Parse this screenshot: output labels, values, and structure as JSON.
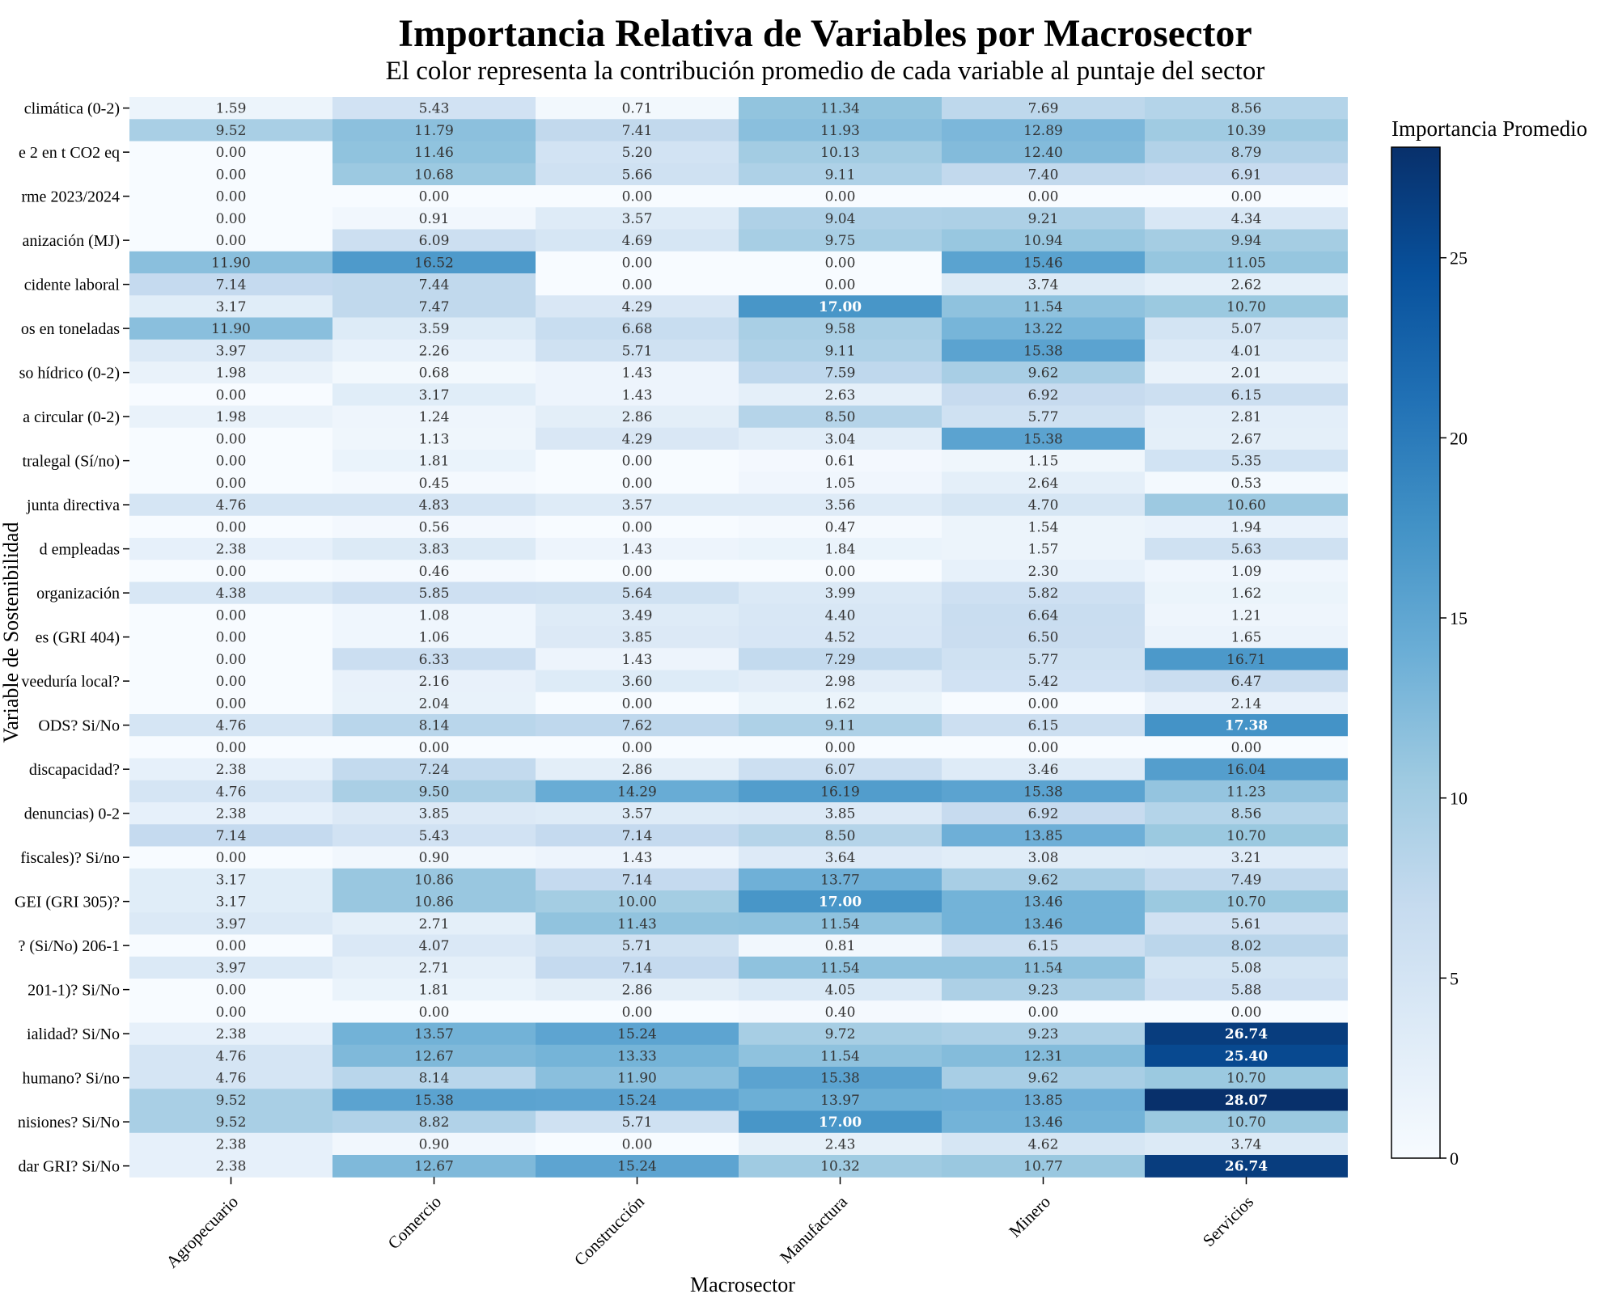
{
  "header": {
    "title": "Importancia Relativa de Variables por Macrosector",
    "subtitle": "El color representa la contribución promedio de cada variable al puntaje del sector"
  },
  "chart_data": {
    "type": "heatmap",
    "title": "Importancia Relativa de Variables por Macrosector",
    "subtitle": "El color representa la contribución promedio de cada variable al puntaje del sector",
    "xlabel": "Macrosector",
    "ylabel": "Variable de Sostenibilidad",
    "colorbar_label": "Importancia Promedio",
    "colormap": "Blues",
    "colorbar_range": [
      0,
      28.07
    ],
    "colorbar_ticks": [
      0,
      5,
      10,
      15,
      20,
      25
    ],
    "colors": {
      "low": "#f7fbff",
      "high": "#08306b"
    },
    "x_categories": [
      "Agropecuario",
      "Comercio",
      "Construcción",
      "Manufactura",
      "Minero",
      "Servicios"
    ],
    "y_tick_labels": [
      "climática (0-2)",
      "e 2 en t CO2 eq",
      "rme 2023/2024",
      "anización (MJ)",
      "cidente laboral",
      "os en toneladas",
      "so hídrico (0-2)",
      "a circular (0-2)",
      "tralegal (Sí/no)",
      "junta directiva",
      "d empleadas",
      "organización",
      "es (GRI 404)",
      "veeduría local?",
      "ODS? Si/No",
      "discapacidad?",
      "denuncias) 0-2",
      "fiscales)? Si/no",
      "GEI (GRI 305)?",
      "? (Si/No) 206-1",
      "201-1)? Si/No",
      "ialidad? Si/No",
      "humano? Si/no",
      "nisiones? Si/No",
      "dar GRI? Si/No"
    ],
    "values": [
      [
        1.59,
        5.43,
        0.71,
        11.34,
        7.69,
        8.56
      ],
      [
        9.52,
        11.79,
        7.41,
        11.93,
        12.89,
        10.39
      ],
      [
        0.0,
        11.46,
        5.2,
        10.13,
        12.4,
        8.79
      ],
      [
        0.0,
        10.68,
        5.66,
        9.11,
        7.4,
        6.91
      ],
      [
        0.0,
        0.0,
        0.0,
        0.0,
        0.0,
        0.0
      ],
      [
        0.0,
        0.91,
        3.57,
        9.04,
        9.21,
        4.34
      ],
      [
        0.0,
        6.09,
        4.69,
        9.75,
        10.94,
        9.94
      ],
      [
        11.9,
        16.52,
        0.0,
        0.0,
        15.46,
        11.05
      ],
      [
        7.14,
        7.44,
        0.0,
        0.0,
        3.74,
        2.62
      ],
      [
        3.17,
        7.47,
        4.29,
        17.0,
        11.54,
        10.7
      ],
      [
        11.9,
        3.59,
        6.68,
        9.58,
        13.22,
        5.07
      ],
      [
        3.97,
        2.26,
        5.71,
        9.11,
        15.38,
        4.01
      ],
      [
        1.98,
        0.68,
        1.43,
        7.59,
        9.62,
        2.01
      ],
      [
        0.0,
        3.17,
        1.43,
        2.63,
        6.92,
        6.15
      ],
      [
        1.98,
        1.24,
        2.86,
        8.5,
        5.77,
        2.81
      ],
      [
        0.0,
        1.13,
        4.29,
        3.04,
        15.38,
        2.67
      ],
      [
        0.0,
        1.81,
        0.0,
        0.61,
        1.15,
        5.35
      ],
      [
        0.0,
        0.45,
        0.0,
        1.05,
        2.64,
        0.53
      ],
      [
        4.76,
        4.83,
        3.57,
        3.56,
        4.7,
        10.6
      ],
      [
        0.0,
        0.56,
        0.0,
        0.47,
        1.54,
        1.94
      ],
      [
        2.38,
        3.83,
        1.43,
        1.84,
        1.57,
        5.63
      ],
      [
        0.0,
        0.46,
        0.0,
        0.0,
        2.3,
        1.09
      ],
      [
        4.38,
        5.85,
        5.64,
        3.99,
        5.82,
        1.62
      ],
      [
        0.0,
        1.08,
        3.49,
        4.4,
        6.64,
        1.21
      ],
      [
        0.0,
        1.06,
        3.85,
        4.52,
        6.5,
        1.65
      ],
      [
        0.0,
        6.33,
        1.43,
        7.29,
        5.77,
        16.71
      ],
      [
        0.0,
        2.16,
        3.6,
        2.98,
        5.42,
        6.47
      ],
      [
        0.0,
        2.04,
        0.0,
        1.62,
        0.0,
        2.14
      ],
      [
        4.76,
        8.14,
        7.62,
        9.11,
        6.15,
        17.38
      ],
      [
        0.0,
        0.0,
        0.0,
        0.0,
        0.0,
        0.0
      ],
      [
        2.38,
        7.24,
        2.86,
        6.07,
        3.46,
        16.04
      ],
      [
        4.76,
        9.5,
        14.29,
        16.19,
        15.38,
        11.23
      ],
      [
        2.38,
        3.85,
        3.57,
        3.85,
        6.92,
        8.56
      ],
      [
        7.14,
        5.43,
        7.14,
        8.5,
        13.85,
        10.7
      ],
      [
        0.0,
        0.9,
        1.43,
        3.64,
        3.08,
        3.21
      ],
      [
        3.17,
        10.86,
        7.14,
        13.77,
        9.62,
        7.49
      ],
      [
        3.17,
        10.86,
        10.0,
        17.0,
        13.46,
        10.7
      ],
      [
        3.97,
        2.71,
        11.43,
        11.54,
        13.46,
        5.61
      ],
      [
        0.0,
        4.07,
        5.71,
        0.81,
        6.15,
        8.02
      ],
      [
        3.97,
        2.71,
        7.14,
        11.54,
        11.54,
        5.08
      ],
      [
        0.0,
        1.81,
        2.86,
        4.05,
        9.23,
        5.88
      ],
      [
        0.0,
        0.0,
        0.0,
        0.4,
        0.0,
        0.0
      ],
      [
        2.38,
        13.57,
        15.24,
        9.72,
        9.23,
        26.74
      ],
      [
        4.76,
        12.67,
        13.33,
        11.54,
        12.31,
        25.4
      ],
      [
        4.76,
        8.14,
        11.9,
        15.38,
        9.62,
        10.7
      ],
      [
        9.52,
        15.38,
        15.24,
        13.97,
        13.85,
        28.07
      ],
      [
        9.52,
        8.82,
        5.71,
        17.0,
        13.46,
        10.7
      ],
      [
        2.38,
        0.9,
        0.0,
        2.43,
        4.62,
        3.74
      ],
      [
        2.38,
        12.67,
        15.24,
        10.32,
        10.77,
        26.74
      ]
    ]
  }
}
